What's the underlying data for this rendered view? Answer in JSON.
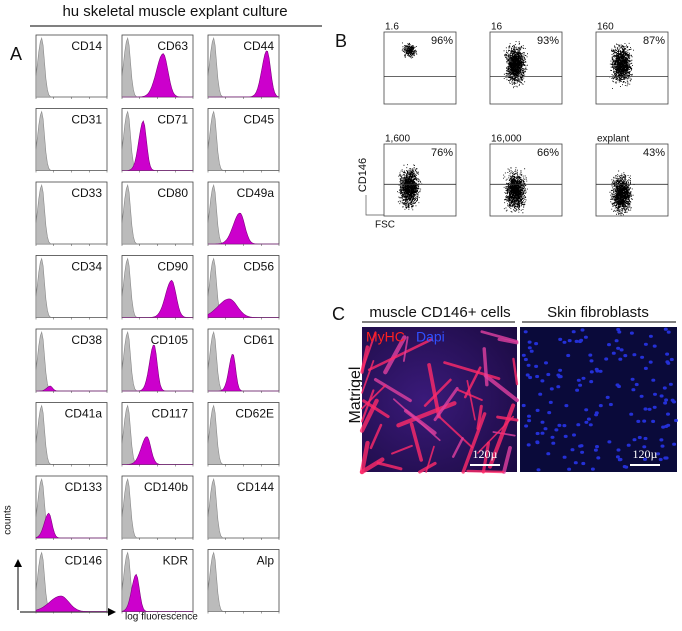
{
  "figure_title": "hu skeletal muscle explant culture",
  "panel_a": {
    "label": "A",
    "markers": [
      "CD14",
      "CD63",
      "CD44",
      "CD31",
      "CD71",
      "CD45",
      "CD33",
      "CD80",
      "CD49a",
      "CD34",
      "CD90",
      "CD56",
      "CD38",
      "CD105",
      "CD61",
      "CD41a",
      "CD117",
      "CD62E",
      "CD133",
      "CD140b",
      "CD144",
      "CD146",
      "KDR",
      "Alp"
    ],
    "y_axis": "counts",
    "x_axis": "log fluorescence"
  },
  "panel_b": {
    "label": "B",
    "plots": [
      {
        "label": "1.6",
        "percent": "96%"
      },
      {
        "label": "16",
        "percent": "93%"
      },
      {
        "label": "160",
        "percent": "87%"
      },
      {
        "label": "1,600",
        "percent": "76%"
      },
      {
        "label": "16,000",
        "percent": "66%"
      },
      {
        "label": "explant",
        "percent": "43%"
      }
    ],
    "y_axis": "CD146",
    "x_axis": "FSC"
  },
  "panel_c": {
    "label": "C",
    "columns": [
      "muscle CD146+ cells",
      "Skin fibroblasts"
    ],
    "stain_1": "MyHC",
    "stain_2": "Dapi",
    "row_label": "Matrigel",
    "scale_bars": [
      "120µ",
      "120µ"
    ]
  }
}
